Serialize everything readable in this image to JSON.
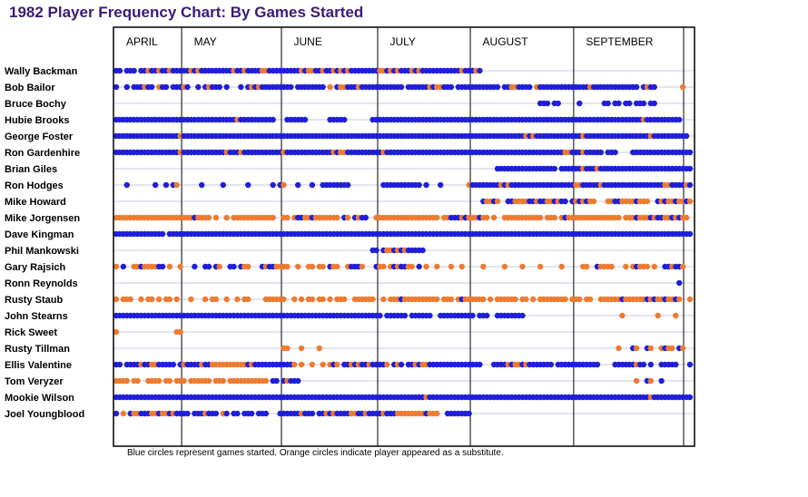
{
  "chart_data": {
    "type": "scatter",
    "title": "1982 Player Frequency Chart: By Games Started",
    "note": "Blue circles represent games started. Orange circles indicate player appeared as a substitute.",
    "months": [
      "APRIL",
      "MAY",
      "JUNE",
      "JULY",
      "AUGUST",
      "SEPTEMBER"
    ],
    "games_total": 162,
    "x_domain": [
      1,
      162
    ],
    "month_start_game": [
      1,
      20,
      48,
      75,
      101,
      130
    ],
    "colors": {
      "started": "#1f1fd8",
      "substitute": "#ee7b30",
      "grid": "#c9c9e3",
      "border": "#000000"
    },
    "legend_key": {
      "B": "started",
      "O": "substitute",
      "-": "did not appear"
    },
    "encoding_note": "Each player's games string is 162 characters, one per game in order.",
    "players": [
      {
        "name": "Wally Backman",
        "games": "BB-BBB-BBOBBOBBOBBBBBOBOBBBBBBBBBOBBOBBBBOOBBBBBBBBBOBOOBBOBBOBOBOBBBBBBBBOOBOBOBBBOBOBBBBBBBBBBBOBBBOB-------------------------------------------------------------"
      },
      {
        "name": "Bob Bailor",
        "games": "B--B-BBBOBB-OBB-BBBOB--B-BOBBB-B---B-BOBOBBBBBBBBB-BBBBBBBB-O-BOOBBBOBBBBBBBBBBBB-BBBBBBOBOOBBB-BBBBBBBBBBBB-BBOOBBBB-OBBBBBBBBBBBBBBOBBBBBBBBBBBBB-BOBB-------O"
      },
      {
        "name": "Bruce Bochy",
        "games": "-----------------------------------------------------------------------------------------------------------------------BBB-BB-----B------BB-BB-BB-BBB-BB"
      },
      {
        "name": "Hubie Brooks",
        "games": "BBBBBBBBBBBBBBBBBBBBBBBBBBBBBBBBBBOBBBBBBBBBB---BBBBBB------BBBBB-------BBBBBBBBBBBBBBBBBBBBBBBBBBBBBBBBBBBBBBBBBBBBBBBBBBBBBBBBBBBBBBBBBBBBBBBBBBBBOBBBBBBBBBB"
      },
      {
        "name": "George Foster",
        "games": "BBBBBBBBBBBBBBBBBBOBBBBBBBBBBBBBBBBBBBBBBBBBBBBBBBBBBBBBBBBBBBBBBBBBBBBBBBBBBBBBBBBBBBBBBBBBBBBBBBBBBBBBBBBBBBBBBBBOBOBBBBBBBBBBBBBOBBBBBBBBBBBBBBBBBBOBBBBBBBBBB"
      },
      {
        "name": "Ron Gardenhire",
        "games": "BBBBBBBBBBBBBBBBBBOBBBBBBBBBBBBOBBBOBBBBBBBBBBBOBBBBBBBBBBBBBOBOOBBBBBBBBBBOBBBBBBBBBBBBBBBBBBBBBBBBBBBBBBBBBBBBBBBBBBBBBBBBBBOOBBBOBBBBB-BBB----BBBBBBBBBBBBBBBBBB"
      },
      {
        "name": "Brian Giles",
        "games": "-----------------------------------------------------------------------------------------------------------BBBBBBBBBBBBBBBBB-BBBBBBOBBBOBBBBBBBBBBBBBBBBBBBBBBBBBBB"
      },
      {
        "name": "Ron Hodges",
        "games": "---B-------B--B-BO------B-----B------B------B-BO---B---B--BBBBBBBB---------BBBBBBBBBBB-B---B-------OBBBBBBBBOBOBBBBBBBBBBBBBBBBBBOOBBBBBOBBBBBBBBBBBBBBBBBOOBBBBOB"
      },
      {
        "name": "Mike Howard",
        "games": "-------------------------------------------------------------------------------------------------------BOOBO--BBOOOOBBOBBOOBOBB-BOBOBOO---OOBBOOOOBOOO--BOBOOBOOBOOOBB"
      },
      {
        "name": "Mike Jorgensen",
        "games": "OOOOOOOOOOOOOOOOOOOOOOBOOOO-O--O-OOOOOOOOOOOO--OO-OBBOOBOOOOOOO-BO-BOBB--OOOOOOOOOOOOOOOOOO-OOBBBOBOOOBOO-O--OOOOOOOOOOO-OOO-OBOOOOOOOOOOOOOOO-OOOBOOOBOBBOOBOBOO"
      },
      {
        "name": "Dave Kingman",
        "games": "BBBBBBBBBBBBBB-BBBBBBBBBBBBBBBBBBBBBBBBBBBBBBBBBBBBBBBBBBBBBBBBBBBBBBBBBBBBBBBBBBBBBBBBBBBBBBBBBBBBBBBBBBBBBBBBBBBBBBBBBBBBBBBBBBBBBBBBBBBBBBBBBBBBBBBBBBBBBBBBBBB"
      },
      {
        "name": "Phil Mankowski",
        "games": "------------------------------------------------------------------------BB-BOOBOBOBBBBB----------------------------------------------------------------------------"
      },
      {
        "name": "Gary Rajsich",
        "games": "O-B--OOBOOOOBB-O--O---B--BB-BO--BB-BOO---BOBBOOOO--O--OO-OO-BOO--OBBBO---BOO-OBOBBOO-B-O--O---O--O-----O-----O----O----O-----O-----OO--BOOOO---O-OBOOO-O--BBOBBO"
      },
      {
        "name": "Ronn Reynolds",
        "games": "--------------------------------------------------------------------------------------------------------------------------------------------------------------B----B"
      },
      {
        "name": "Rusty Staub",
        "games": "O-OOO--O-OO-O-OO-O---O---O-OO--O--O-OO----OOOOOO--O-O-OO-OO-O-OOO--OOOOOO--O-OOOBOOOOOOOOOO-OOO-OBOOOOOO-O-OOOOOO-OO-O-OOOOOOOO-OOO-OO--OOOOOOBOOOOOOBOBOOBOOBO--OBBOO"
      },
      {
        "name": "John Stearns",
        "games": "BBBBBBBBBBBBBBBBBBBBBBBBBBBBBBBBBBBBBBBBBBBBBBBBBBBBBBBBBBBBBBBBBBBBBBBBBBB-BBBBBB-BBBBBB--BBBBBBBBBB-BBB--BBBBBBBB---------------------------O---------O----O---"
      },
      {
        "name": "Rick Sweet",
        "games": "O----------------OO-----------------------------------------------------------------------------------------------------------------------------------------------------"
      },
      {
        "name": "Rusty Tillman",
        "games": "-----------------------------------------------OO---O----O-----------------------------------------------------------------------------------O---BO--BO--OBOO-BO"
      },
      {
        "name": "Ellis Valentine",
        "games": "BB-BBBBOBBOOBBBBB-BOBBBBOBBOOOOOOOOOOBOBBBBBBBBBBBO-O--O--O-OBO-BBOBOBBOBBBBO-BOB-BBOBOOBBBBBBBBBBBBBBB---BBBBOBOOBOBBBBBBB-BBBBBBBBBBBB----BBBBBBOBB-B--BBBBB---BBBB"
      },
      {
        "name": "Tom Veryzer",
        "games": "OOOO-OO--OOOO-OO-OOO-OOOOOO-OOO-OOOOOOOOOOO-BB-BOBBB----------------------------------------------------------------------------------------------O--BO--B----------"
      },
      {
        "name": "Mookie Wilson",
        "games": "BBBBBBBBBBBBBBBBBBBBBBBBBBBBBBBBBBBBBBBBBBBBBBBBBBBBBBBBBBBBBBBBBBBBBBBBBBBBBBBBBBBBBBBOBBBBBBBBBBBBBBBBBBBBBBBBBBBBBBBBBBBBBBBBBBBBBBBBBBBBBBBBBBBBBBOBBBBBBBBBBBB"
      },
      {
        "name": "Joel Youngblood",
        "games": "B-O-BOOBBBOOBOOBOBBBB-BBBOBBB-OB-BB-BBB-BBB---BBBBBBOBBB-BBOBOBBBBOOBBOBBBBOBBBOOOOOOOOBOOO--BBBBBBB-------------------------------------------------------------------"
      }
    ]
  }
}
